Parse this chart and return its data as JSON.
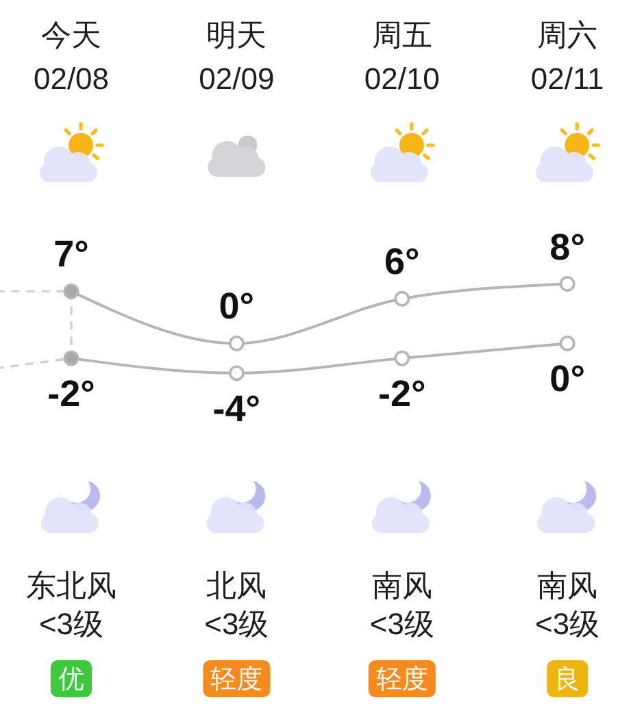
{
  "chart_data": {
    "type": "line",
    "categories": [
      null,
      "今天\n02/08",
      "明天\n02/09",
      "周五\n02/10",
      "周六\n02/11"
    ],
    "marker": "circle",
    "series": [
      {
        "color": "#b5b5b5",
        "values": [
          null,
          7,
          0,
          6,
          8
        ],
        "colors": [
          null,
          "#a9a9a9",
          "#ffffff",
          "#ffffff",
          "#ffffff"
        ],
        "value_labels": [
          null,
          "7°",
          "0°",
          "6°",
          "8°"
        ]
      },
      {
        "color": "#b5b5b5",
        "values": [
          null,
          -2,
          -4,
          -2,
          0
        ],
        "colors": [
          null,
          "#a9a9a9",
          "#ffffff",
          "#ffffff",
          "#ffffff"
        ],
        "value_labels": [
          null,
          "-2°",
          "-4°",
          "-2°",
          "0°"
        ]
      },
      {
        "color": "#cfcfcf",
        "values": [
          7,
          7,
          null,
          null,
          null
        ],
        "line_style": "dashed",
        "marker": "none"
      },
      {
        "color": "#cfcfcf",
        "values": [
          -5,
          -2,
          null,
          null,
          null
        ],
        "line_style": "dashed",
        "marker": "none"
      },
      {
        "color": "#cfcfcf",
        "x": [
          "今天\n02/08",
          "今天\n02/08"
        ],
        "values": [
          7,
          -2
        ],
        "line_style": "dashed",
        "marker": "none"
      }
    ],
    "annotations": [
      "东北风\n<3级",
      "北风\n<3级",
      "南风\n<3级",
      "南风\n<3级",
      "优",
      "轻度",
      "轻度",
      "良"
    ]
  }
}
